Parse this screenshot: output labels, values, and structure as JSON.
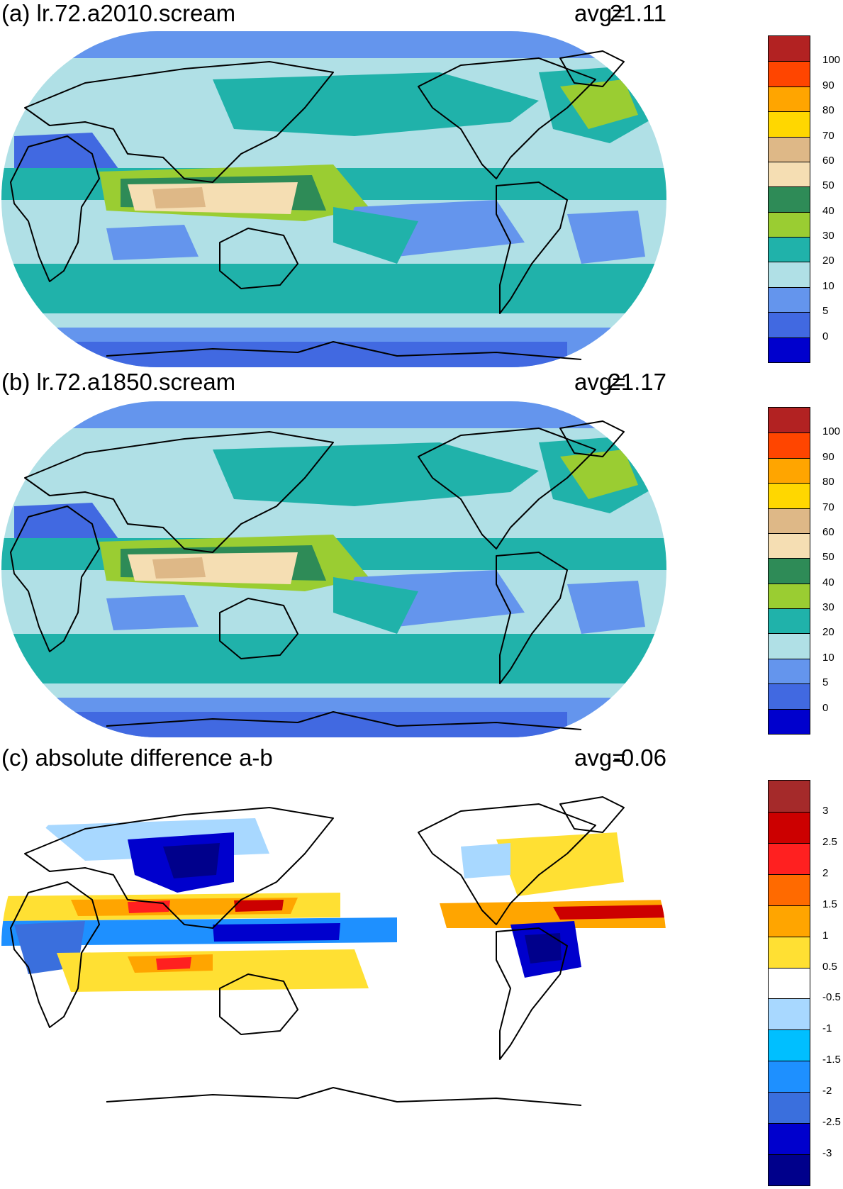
{
  "panels": [
    {
      "id": "a",
      "title": "(a) lr.72.a2010.scream",
      "avg_label": "avg=",
      "avg_value": "21.11",
      "colorbar": {
        "colors": [
          "#b22222",
          "#ff4500",
          "#ffa500",
          "#ffd700",
          "#deb887",
          "#f5deb3",
          "#2e8b57",
          "#9acd32",
          "#20b2aa",
          "#b0e0e6",
          "#6495ed",
          "#4169e1",
          "#0000cd"
        ],
        "ticks": [
          "100",
          "90",
          "80",
          "70",
          "60",
          "50",
          "40",
          "30",
          "20",
          "10",
          "5",
          "0"
        ]
      }
    },
    {
      "id": "b",
      "title": "(b) lr.72.a1850.scream",
      "avg_label": "avg=",
      "avg_value": "21.17",
      "colorbar": {
        "colors": [
          "#b22222",
          "#ff4500",
          "#ffa500",
          "#ffd700",
          "#deb887",
          "#f5deb3",
          "#2e8b57",
          "#9acd32",
          "#20b2aa",
          "#b0e0e6",
          "#6495ed",
          "#4169e1",
          "#0000cd"
        ],
        "ticks": [
          "100",
          "90",
          "80",
          "70",
          "60",
          "50",
          "40",
          "30",
          "20",
          "10",
          "5",
          "0"
        ]
      }
    },
    {
      "id": "c",
      "title": "(c) absolute difference a-b",
      "avg_label": "avg=",
      "avg_value": "-0.06",
      "colorbar": {
        "colors": [
          "#a52a2a",
          "#cc0000",
          "#ff2020",
          "#ff6a00",
          "#ffa500",
          "#ffe033",
          "#ffffff",
          "#a8d8ff",
          "#00bfff",
          "#1e90ff",
          "#3a6fdd",
          "#0000cd",
          "#00008b"
        ],
        "ticks": [
          "3",
          "2.5",
          "2",
          "1.5",
          "1",
          "0.5",
          "-0.5",
          "-1",
          "-1.5",
          "-2",
          "-2.5",
          "-3"
        ]
      }
    }
  ]
}
